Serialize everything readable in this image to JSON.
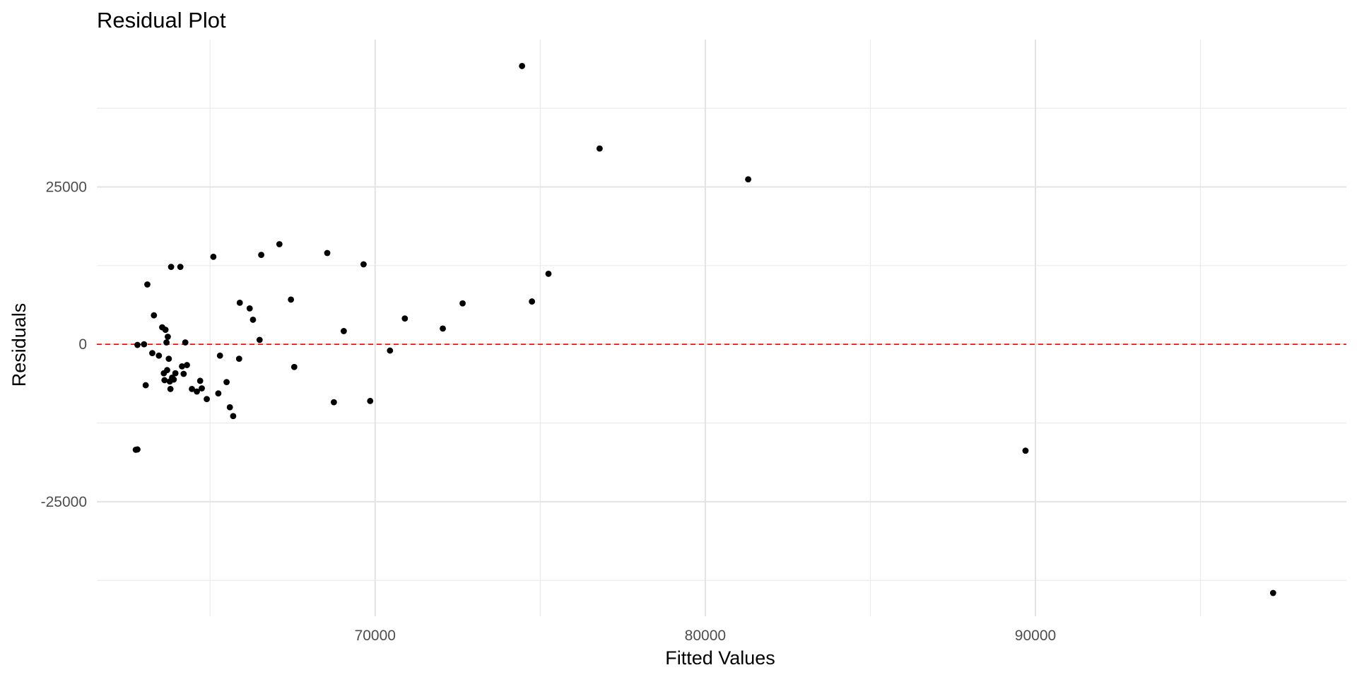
{
  "chart_data": {
    "type": "scatter",
    "title": "Residual Plot",
    "xlabel": "Fitted Values",
    "ylabel": "Residuals",
    "xlim": [
      61570,
      99420
    ],
    "ylim": [
      -43200,
      48400
    ],
    "x_ticks": [
      70000,
      80000,
      90000
    ],
    "x_tick_labels": [
      "70000",
      "80000",
      "90000"
    ],
    "x_minor_ticks": [
      65000,
      75000,
      85000,
      95000
    ],
    "y_ticks": [
      -25000,
      0,
      25000
    ],
    "y_tick_labels": [
      "-25000",
      "0",
      "25000"
    ],
    "y_minor_ticks": [
      -37500,
      -12500,
      12500,
      37500
    ],
    "grid": true,
    "reference_line": {
      "y": 0,
      "style": "dashed",
      "color": "#ff0000"
    },
    "point_color": "#000000",
    "points": [
      {
        "x": 62750,
        "y": -16750
      },
      {
        "x": 62800,
        "y": -16700
      },
      {
        "x": 62800,
        "y": -100
      },
      {
        "x": 63000,
        "y": 0
      },
      {
        "x": 63050,
        "y": -6500
      },
      {
        "x": 63100,
        "y": 9500
      },
      {
        "x": 63250,
        "y": -1400
      },
      {
        "x": 63300,
        "y": 4600
      },
      {
        "x": 63450,
        "y": -1800
      },
      {
        "x": 63550,
        "y": 2700
      },
      {
        "x": 63600,
        "y": -4600
      },
      {
        "x": 63620,
        "y": -5700
      },
      {
        "x": 63650,
        "y": 2300
      },
      {
        "x": 63680,
        "y": 300
      },
      {
        "x": 63700,
        "y": -4100
      },
      {
        "x": 63720,
        "y": 1200
      },
      {
        "x": 63750,
        "y": -2300
      },
      {
        "x": 63780,
        "y": -5900
      },
      {
        "x": 63800,
        "y": -7100
      },
      {
        "x": 63820,
        "y": 12300
      },
      {
        "x": 63850,
        "y": -5300
      },
      {
        "x": 63900,
        "y": -5600
      },
      {
        "x": 63950,
        "y": -4600
      },
      {
        "x": 64100,
        "y": 12300
      },
      {
        "x": 64150,
        "y": -3500
      },
      {
        "x": 64250,
        "y": 300
      },
      {
        "x": 64300,
        "y": -3300
      },
      {
        "x": 64200,
        "y": -4700
      },
      {
        "x": 64450,
        "y": -7100
      },
      {
        "x": 64600,
        "y": -7500
      },
      {
        "x": 64700,
        "y": -5800
      },
      {
        "x": 64750,
        "y": -7000
      },
      {
        "x": 64900,
        "y": -8700
      },
      {
        "x": 65100,
        "y": 13900
      },
      {
        "x": 65250,
        "y": -7800
      },
      {
        "x": 65300,
        "y": -1800
      },
      {
        "x": 65500,
        "y": -6000
      },
      {
        "x": 65600,
        "y": -10000
      },
      {
        "x": 65700,
        "y": -11400
      },
      {
        "x": 65880,
        "y": -2300
      },
      {
        "x": 65900,
        "y": 6600
      },
      {
        "x": 66200,
        "y": 5700
      },
      {
        "x": 66300,
        "y": 3900
      },
      {
        "x": 66500,
        "y": 700
      },
      {
        "x": 66550,
        "y": 14200
      },
      {
        "x": 67100,
        "y": 15900
      },
      {
        "x": 67450,
        "y": 7100
      },
      {
        "x": 67550,
        "y": -3600
      },
      {
        "x": 68550,
        "y": 14500
      },
      {
        "x": 68750,
        "y": -9200
      },
      {
        "x": 69050,
        "y": 2100
      },
      {
        "x": 69650,
        "y": 12700
      },
      {
        "x": 69850,
        "y": -9000
      },
      {
        "x": 70450,
        "y": -1000
      },
      {
        "x": 70900,
        "y": 4100
      },
      {
        "x": 72050,
        "y": 2500
      },
      {
        "x": 72650,
        "y": 6500
      },
      {
        "x": 74450,
        "y": 44200
      },
      {
        "x": 74750,
        "y": 6800
      },
      {
        "x": 75250,
        "y": 11200
      },
      {
        "x": 76800,
        "y": 31100
      },
      {
        "x": 81300,
        "y": 26200
      },
      {
        "x": 89700,
        "y": -16900
      },
      {
        "x": 97200,
        "y": -39500
      }
    ]
  }
}
